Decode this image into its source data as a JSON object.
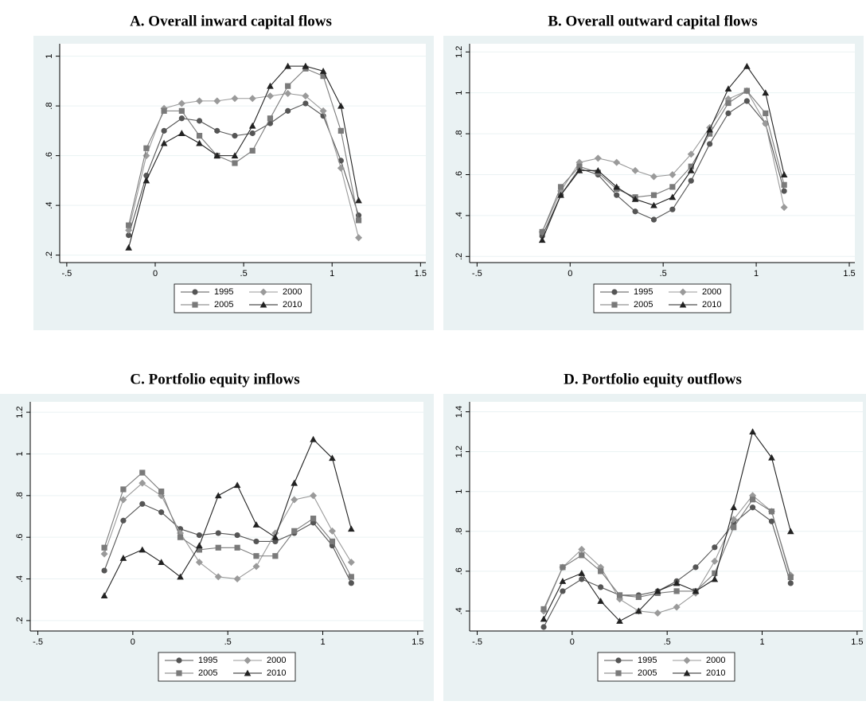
{
  "chart_data": [
    {
      "type": "line",
      "title": "A. Overall inward capital flows",
      "x": [
        -0.15,
        -0.05,
        0.05,
        0.15,
        0.25,
        0.35,
        0.45,
        0.55,
        0.65,
        0.75,
        0.85,
        0.95,
        1.05,
        1.15
      ],
      "series": [
        {
          "name": "1995",
          "color": "#555555",
          "marker": "circle",
          "values": [
            0.28,
            0.52,
            0.7,
            0.75,
            0.74,
            0.7,
            0.68,
            0.69,
            0.73,
            0.78,
            0.81,
            0.76,
            0.58,
            0.36
          ]
        },
        {
          "name": "2000",
          "color": "#9a9a9a",
          "marker": "diamond",
          "values": [
            0.3,
            0.6,
            0.79,
            0.81,
            0.82,
            0.82,
            0.83,
            0.83,
            0.84,
            0.85,
            0.84,
            0.78,
            0.55,
            0.27
          ]
        },
        {
          "name": "2005",
          "color": "#7a7a7a",
          "marker": "square",
          "values": [
            0.32,
            0.63,
            0.78,
            0.78,
            0.68,
            0.6,
            0.57,
            0.62,
            0.75,
            0.88,
            0.95,
            0.92,
            0.7,
            0.34
          ]
        },
        {
          "name": "2010",
          "color": "#222222",
          "marker": "triangle",
          "values": [
            0.23,
            0.5,
            0.65,
            0.69,
            0.65,
            0.6,
            0.6,
            0.72,
            0.88,
            0.96,
            0.96,
            0.94,
            0.8,
            0.42
          ]
        }
      ],
      "xlim": [
        -0.54,
        1.53
      ],
      "ylim": [
        0.17,
        1.05
      ],
      "xticks": [
        {
          "value": -0.5,
          "label": "-.5"
        },
        0,
        {
          "value": 0.5,
          "label": ".5"
        },
        1,
        1.5
      ],
      "yticks": [
        {
          "value": 0.2,
          "label": ".2"
        },
        {
          "value": 0.4,
          "label": ".4"
        },
        {
          "value": 0.6,
          "label": ".6"
        },
        {
          "value": 0.8,
          "label": ".8"
        },
        1
      ],
      "grid": true,
      "legend": "bottom"
    },
    {
      "type": "line",
      "title": "B. Overall outward capital flows",
      "x": [
        -0.15,
        -0.05,
        0.05,
        0.15,
        0.25,
        0.35,
        0.45,
        0.55,
        0.65,
        0.75,
        0.85,
        0.95,
        1.05,
        1.15
      ],
      "series": [
        {
          "name": "1995",
          "color": "#555555",
          "marker": "circle",
          "values": [
            0.3,
            0.5,
            0.63,
            0.6,
            0.5,
            0.42,
            0.38,
            0.43,
            0.57,
            0.75,
            0.9,
            0.96,
            0.85,
            0.52
          ]
        },
        {
          "name": "2000",
          "color": "#9a9a9a",
          "marker": "diamond",
          "values": [
            0.32,
            0.52,
            0.66,
            0.68,
            0.66,
            0.62,
            0.59,
            0.6,
            0.7,
            0.83,
            0.97,
            1.01,
            0.85,
            0.44
          ]
        },
        {
          "name": "2005",
          "color": "#7a7a7a",
          "marker": "square",
          "values": [
            0.32,
            0.54,
            0.64,
            0.61,
            0.53,
            0.49,
            0.5,
            0.54,
            0.64,
            0.8,
            0.95,
            1.01,
            0.9,
            0.55
          ]
        },
        {
          "name": "2010",
          "color": "#222222",
          "marker": "triangle",
          "values": [
            0.28,
            0.5,
            0.62,
            0.62,
            0.54,
            0.48,
            0.45,
            0.49,
            0.62,
            0.82,
            1.02,
            1.13,
            1.0,
            0.6
          ]
        }
      ],
      "xlim": [
        -0.54,
        1.53
      ],
      "ylim": [
        0.17,
        1.24
      ],
      "xticks": [
        {
          "value": -0.5,
          "label": "-.5"
        },
        0,
        {
          "value": 0.5,
          "label": ".5"
        },
        1,
        1.5
      ],
      "yticks": [
        {
          "value": 0.2,
          "label": ".2"
        },
        {
          "value": 0.4,
          "label": ".4"
        },
        {
          "value": 0.6,
          "label": ".6"
        },
        {
          "value": 0.8,
          "label": ".8"
        },
        1,
        1.2
      ],
      "grid": true,
      "legend": "bottom"
    },
    {
      "type": "line",
      "title": "C. Portfolio equity inflows",
      "x": [
        -0.15,
        -0.05,
        0.05,
        0.15,
        0.25,
        0.35,
        0.45,
        0.55,
        0.65,
        0.75,
        0.85,
        0.95,
        1.05,
        1.15
      ],
      "series": [
        {
          "name": "1995",
          "color": "#555555",
          "marker": "circle",
          "values": [
            0.44,
            0.68,
            0.76,
            0.72,
            0.64,
            0.61,
            0.62,
            0.61,
            0.58,
            0.58,
            0.62,
            0.67,
            0.56,
            0.38
          ]
        },
        {
          "name": "2000",
          "color": "#9a9a9a",
          "marker": "diamond",
          "values": [
            0.52,
            0.78,
            0.86,
            0.8,
            0.62,
            0.48,
            0.41,
            0.4,
            0.46,
            0.62,
            0.78,
            0.8,
            0.63,
            0.48
          ]
        },
        {
          "name": "2005",
          "color": "#7a7a7a",
          "marker": "square",
          "values": [
            0.55,
            0.83,
            0.91,
            0.82,
            0.6,
            0.54,
            0.55,
            0.55,
            0.51,
            0.51,
            0.63,
            0.69,
            0.58,
            0.41
          ]
        },
        {
          "name": "2010",
          "color": "#222222",
          "marker": "triangle",
          "values": [
            0.32,
            0.5,
            0.54,
            0.48,
            0.41,
            0.56,
            0.8,
            0.85,
            0.66,
            0.6,
            0.86,
            1.07,
            0.98,
            0.64
          ]
        }
      ],
      "xlim": [
        -0.54,
        1.53
      ],
      "ylim": [
        0.15,
        1.25
      ],
      "xticks": [
        {
          "value": -0.5,
          "label": "-.5"
        },
        0,
        {
          "value": 0.5,
          "label": ".5"
        },
        1,
        1.5
      ],
      "yticks": [
        {
          "value": 0.2,
          "label": ".2"
        },
        {
          "value": 0.4,
          "label": ".4"
        },
        {
          "value": 0.6,
          "label": ".6"
        },
        {
          "value": 0.8,
          "label": ".8"
        },
        1,
        1.2
      ],
      "grid": true,
      "legend": "bottom"
    },
    {
      "type": "line",
      "title": "D. Portfolio equity outflows",
      "x": [
        -0.15,
        -0.05,
        0.05,
        0.15,
        0.25,
        0.35,
        0.45,
        0.55,
        0.65,
        0.75,
        0.85,
        0.95,
        1.05,
        1.15
      ],
      "series": [
        {
          "name": "1995",
          "color": "#555555",
          "marker": "circle",
          "values": [
            0.32,
            0.5,
            0.56,
            0.52,
            0.48,
            0.48,
            0.5,
            0.55,
            0.62,
            0.72,
            0.84,
            0.92,
            0.85,
            0.54
          ]
        },
        {
          "name": "2000",
          "color": "#9a9a9a",
          "marker": "diamond",
          "values": [
            0.4,
            0.62,
            0.71,
            0.62,
            0.46,
            0.4,
            0.39,
            0.42,
            0.49,
            0.65,
            0.86,
            0.98,
            0.9,
            0.58
          ]
        },
        {
          "name": "2005",
          "color": "#7a7a7a",
          "marker": "square",
          "values": [
            0.41,
            0.62,
            0.68,
            0.6,
            0.48,
            0.47,
            0.49,
            0.5,
            0.5,
            0.59,
            0.82,
            0.96,
            0.9,
            0.57
          ]
        },
        {
          "name": "2010",
          "color": "#222222",
          "marker": "triangle",
          "values": [
            0.36,
            0.55,
            0.59,
            0.45,
            0.35,
            0.4,
            0.5,
            0.54,
            0.5,
            0.56,
            0.92,
            1.3,
            1.17,
            0.8
          ]
        }
      ],
      "xlim": [
        -0.54,
        1.53
      ],
      "ylim": [
        0.3,
        1.45
      ],
      "xticks": [
        {
          "value": -0.5,
          "label": "-.5"
        },
        0,
        {
          "value": 0.5,
          "label": ".5"
        },
        1,
        1.5
      ],
      "yticks": [
        {
          "value": 0.4,
          "label": ".4"
        },
        {
          "value": 0.6,
          "label": ".6"
        },
        {
          "value": 0.8,
          "label": ".8"
        },
        1,
        1.2,
        1.4
      ],
      "grid": true,
      "legend": "bottom"
    }
  ]
}
